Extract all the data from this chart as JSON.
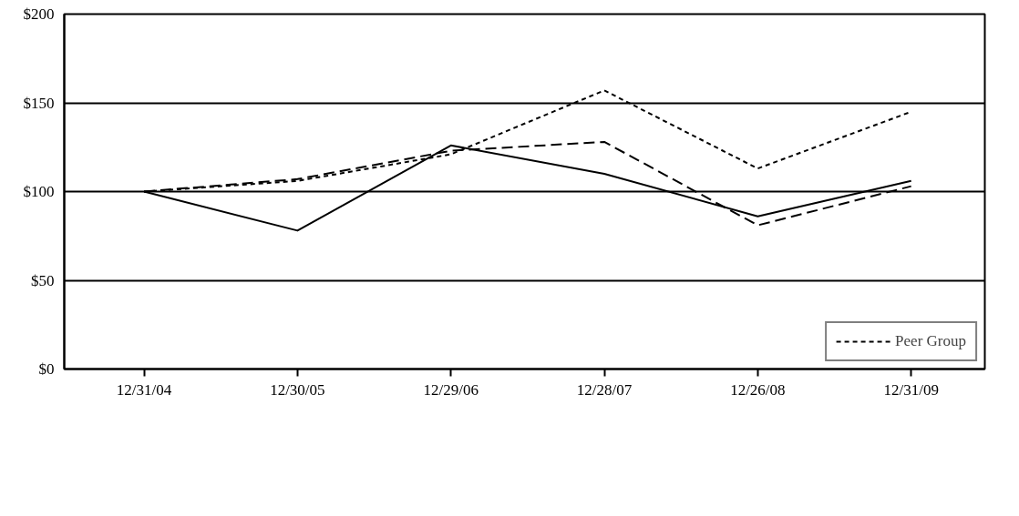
{
  "chart_data": {
    "type": "line",
    "categories": [
      "12/31/04",
      "12/30/05",
      "12/29/06",
      "12/28/07",
      "12/26/08",
      "12/31/09"
    ],
    "series": [
      {
        "color": "#000000",
        "line_style": "solid",
        "values": [
          100,
          78,
          126,
          110,
          86,
          106
        ]
      },
      {
        "color": "#000000",
        "line_style": "dashed",
        "values": [
          100,
          107,
          123,
          128,
          81,
          103
        ]
      },
      {
        "name": "Peer Group",
        "color": "#000000",
        "line_style": "dotted",
        "values": [
          100,
          106,
          121,
          157,
          113,
          145
        ]
      }
    ],
    "ylim": [
      0,
      200
    ],
    "yticks": [
      {
        "value": 0,
        "label": "$0"
      },
      {
        "value": 50,
        "label": "$50"
      },
      {
        "value": 100,
        "label": "$100"
      },
      {
        "value": 150,
        "label": "$150"
      },
      {
        "value": 200,
        "label": "$200"
      }
    ],
    "grid": "y",
    "legend": "bottom right",
    "marker": "none"
  }
}
